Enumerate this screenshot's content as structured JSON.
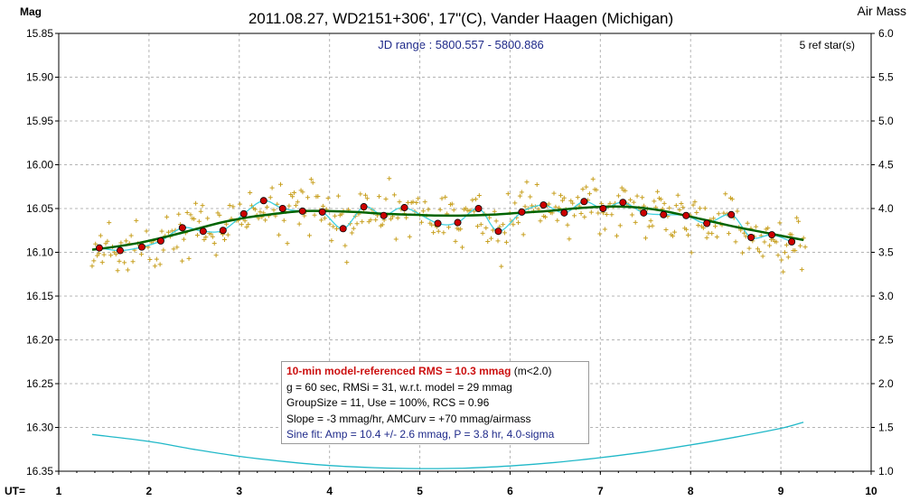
{
  "chart_data": {
    "type": "scatter",
    "title": "2011.08.27, WD2151+306', 17\"(C), Vander Haagen (Michigan)",
    "subtitle": "JD range : 5800.557 - 5800.886",
    "ref_stars": "5 ref star(s)",
    "ylabel_left": "Mag",
    "ylabel_right": "Air Mass",
    "xlabel": "UT=",
    "xlim": [
      1,
      10
    ],
    "ylim_left": [
      16.35,
      15.85
    ],
    "ylim_right": [
      1.0,
      6.0
    ],
    "x_ticks": [
      "1",
      "2",
      "3",
      "4",
      "5",
      "6",
      "7",
      "8",
      "9",
      "10"
    ],
    "y_ticks_left": [
      "15.85",
      "15.90",
      "15.95",
      "16.00",
      "16.05",
      "16.10",
      "16.15",
      "16.20",
      "16.25",
      "16.30",
      "16.35"
    ],
    "y_ticks_right": [
      "6.0",
      "5.5",
      "5.0",
      "4.5",
      "4.0",
      "3.5",
      "3.0",
      "2.5",
      "2.0",
      "1.5",
      "1.0"
    ],
    "grid": true,
    "colors": {
      "raw_points": "#c8a020",
      "binned_points": "#cc0000",
      "model_curve": "#006400",
      "sine_curve": "#40d0e0",
      "airmass_curve": "#20b8c8"
    },
    "series": [
      {
        "kind": "binned",
        "x": [
          1.45,
          1.68,
          1.92,
          2.13,
          2.37,
          2.6,
          2.82,
          3.05,
          3.27,
          3.48,
          3.7,
          3.92,
          4.15,
          4.38,
          4.6,
          4.83,
          5.2,
          5.42,
          5.65,
          5.87,
          6.13,
          6.37,
          6.6,
          6.82,
          7.03,
          7.25,
          7.48,
          7.7,
          7.95,
          8.18,
          8.45,
          8.67,
          8.9,
          9.12
        ],
        "y": [
          16.095,
          16.098,
          16.094,
          16.087,
          16.072,
          16.076,
          16.075,
          16.056,
          16.041,
          16.05,
          16.053,
          16.054,
          16.073,
          16.048,
          16.058,
          16.049,
          16.067,
          16.066,
          16.05,
          16.076,
          16.054,
          16.046,
          16.055,
          16.042,
          16.05,
          16.043,
          16.055,
          16.057,
          16.058,
          16.067,
          16.057,
          16.083,
          16.08,
          16.088
        ]
      },
      {
        "kind": "model",
        "x": [
          1.37,
          1.6,
          1.9,
          2.2,
          2.5,
          2.8,
          3.1,
          3.4,
          3.7,
          4.0,
          4.3,
          4.6,
          4.9,
          5.2,
          5.5,
          5.8,
          6.1,
          6.4,
          6.7,
          7.0,
          7.3,
          7.6,
          7.9,
          8.2,
          8.5,
          8.8,
          9.0,
          9.25
        ],
        "y": [
          16.097,
          16.094,
          16.089,
          16.082,
          16.074,
          16.066,
          16.06,
          16.056,
          16.053,
          16.053,
          16.054,
          16.056,
          16.057,
          16.058,
          16.058,
          16.057,
          16.055,
          16.053,
          16.05,
          16.048,
          16.048,
          16.051,
          16.057,
          16.064,
          16.071,
          16.077,
          16.081,
          16.086
        ]
      },
      {
        "kind": "airmass",
        "x": [
          1.37,
          2.0,
          2.5,
          3.0,
          3.5,
          4.0,
          4.5,
          5.0,
          5.5,
          6.0,
          6.5,
          7.0,
          7.5,
          8.0,
          8.5,
          9.0,
          9.25
        ],
        "y": [
          1.42,
          1.34,
          1.25,
          1.17,
          1.11,
          1.065,
          1.04,
          1.03,
          1.035,
          1.06,
          1.1,
          1.155,
          1.22,
          1.3,
          1.39,
          1.49,
          1.56
        ]
      }
    ],
    "annotations": {
      "box_line1_bold": "10-min model-referenced RMS = 10.3 mmag",
      "box_line1_note": "(m<2.0)",
      "box_line2": "g = 60 sec, RMSi = 31, w.r.t. model = 29 mmag",
      "box_line3": "GroupSize = 11, Use = 100%, RCS = 0.96",
      "box_line4": "Slope = -3 mmag/hr, AMCurv = +70 mmag/airmass",
      "box_line5": "Sine fit: Amp = 10.4 +/- 2.6 mmag, P = 3.8 hr, 4.0-sigma"
    }
  }
}
